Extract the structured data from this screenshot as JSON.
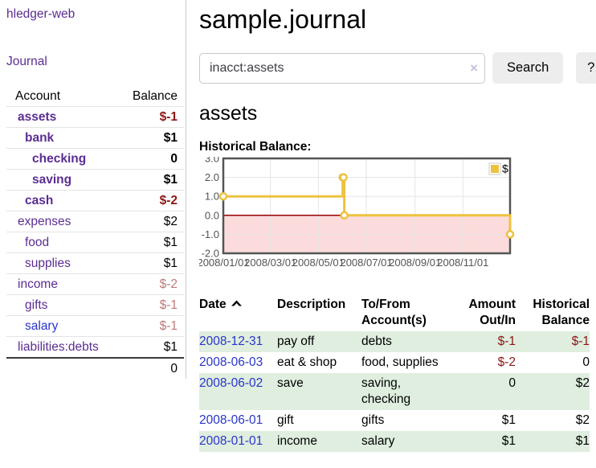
{
  "app": {
    "title": "hledger-web"
  },
  "sidebar": {
    "journal_link": "Journal",
    "headers": {
      "account": "Account",
      "balance": "Balance"
    },
    "accounts": [
      {
        "name": "assets",
        "balance": "$-1",
        "link_class": "acct",
        "bal_class": "neg-strong"
      },
      {
        "name": "bank",
        "balance": "$1",
        "link_class": "acct",
        "bal_class": "pos"
      },
      {
        "name": "checking",
        "balance": "0",
        "link_class": "acct",
        "bal_class": "pos"
      },
      {
        "name": "saving",
        "balance": "$1",
        "link_class": "acct",
        "bal_class": "pos"
      },
      {
        "name": "cash",
        "balance": "$-2",
        "link_class": "acct",
        "bal_class": "neg-strong"
      },
      {
        "name": "expenses",
        "balance": "$2",
        "link_class": "acct",
        "bal_class": "pos"
      },
      {
        "name": "food",
        "balance": "$1",
        "link_class": "acct",
        "bal_class": "pos"
      },
      {
        "name": "supplies",
        "balance": "$1",
        "link_class": "acct",
        "bal_class": "pos"
      },
      {
        "name": "income",
        "balance": "$-2",
        "link_class": "acct",
        "bal_class": "neg-muted"
      },
      {
        "name": "gifts",
        "balance": "$-1",
        "link_class": "acct",
        "bal_class": "neg-muted"
      },
      {
        "name": "salary",
        "balance": "$-1",
        "link_class": "acct blue",
        "bal_class": "neg-muted"
      },
      {
        "name": "liabilities:debts",
        "balance": "$1",
        "link_class": "acct",
        "bal_class": "pos"
      }
    ],
    "total": "0"
  },
  "main": {
    "title": "sample.journal",
    "search": {
      "value": "inacct:assets",
      "clear_icon": "×",
      "button_label": "Search",
      "help_label": "?"
    },
    "account_heading": "assets",
    "chart_label": "Historical Balance:"
  },
  "chart_data": {
    "type": "line",
    "step": true,
    "title": "Historical Balance",
    "xrange": [
      "2008-01-01",
      "2008-12-31"
    ],
    "ylim": [
      -2,
      3
    ],
    "y_ticks": [
      {
        "label": "3.0",
        "value": 3
      },
      {
        "label": "2.0",
        "value": 2
      },
      {
        "label": "1.0",
        "value": 1
      },
      {
        "label": "0.0",
        "value": 0
      },
      {
        "label": "-1.0",
        "value": -1
      },
      {
        "label": "-2.0",
        "value": -2
      }
    ],
    "x_ticks": [
      {
        "label": "2008/01/01",
        "date": "2008-01-01"
      },
      {
        "label": "2008/03/01",
        "date": "2008-03-01"
      },
      {
        "label": "2008/05/01",
        "date": "2008-05-01"
      },
      {
        "label": "2008/07/01",
        "date": "2008-07-01"
      },
      {
        "label": "2008/09/01",
        "date": "2008-09-01"
      },
      {
        "label": "2008/11/01",
        "date": "2008-11-01"
      }
    ],
    "series": [
      {
        "name": "$",
        "points": [
          [
            "2008-01-01",
            1
          ],
          [
            "2008-06-01",
            2
          ],
          [
            "2008-06-02",
            2
          ],
          [
            "2008-06-03",
            0
          ],
          [
            "2008-12-31",
            -1
          ]
        ]
      }
    ],
    "legend_position": "top-right",
    "grid": true,
    "colors": {
      "series": "#edc240",
      "marker_fill": "#ffffff",
      "negative_fill": "#fbdbdb",
      "zero_line": "#990000",
      "grid_line": "#e5e5e5",
      "border": "#545454",
      "tick_text": "#545454",
      "legend_border": "#cccccc"
    }
  },
  "register": {
    "headers": {
      "date": "Date",
      "description": "Description",
      "accounts_line1": "To/From",
      "accounts_line2": "Account(s)",
      "amount_line1": "Amount",
      "amount_line2": "Out/In",
      "balance_line1": "Historical",
      "balance_line2": "Balance"
    },
    "rows": [
      {
        "date": "2008-12-31",
        "description": "pay off",
        "accounts": [
          "debts"
        ],
        "amount": "$-1",
        "amount_class": "neg",
        "balance": "$-1",
        "balance_class": "neg"
      },
      {
        "date": "2008-06-03",
        "description": "eat & shop",
        "accounts": [
          "food, supplies"
        ],
        "amount": "$-2",
        "amount_class": "neg",
        "balance": "0",
        "balance_class": "pos"
      },
      {
        "date": "2008-06-02",
        "description": "save",
        "accounts": [
          "saving,",
          "checking"
        ],
        "amount": "0",
        "amount_class": "pos",
        "balance": "$2",
        "balance_class": "pos"
      },
      {
        "date": "2008-06-01",
        "description": "gift",
        "accounts": [
          "gifts"
        ],
        "amount": "$1",
        "amount_class": "pos",
        "balance": "$2",
        "balance_class": "pos"
      },
      {
        "date": "2008-01-01",
        "description": "income",
        "accounts": [
          "salary"
        ],
        "amount": "$1",
        "amount_class": "pos",
        "balance": "$1",
        "balance_class": "pos"
      }
    ]
  }
}
